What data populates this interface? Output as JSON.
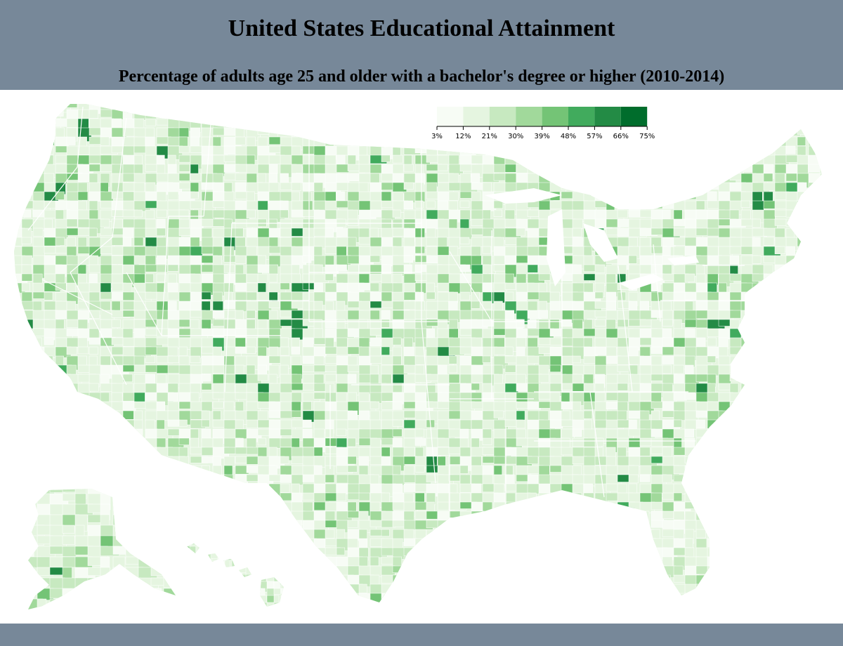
{
  "title": "United States Educational Attainment",
  "subtitle": "Percentage of adults age 25 and older with a bachelor's degree or higher (2010-2014)",
  "legend": {
    "ticks": [
      "3%",
      "12%",
      "21%",
      "30%",
      "39%",
      "48%",
      "57%",
      "66%",
      "75%"
    ],
    "colors": [
      "#f7fcf5",
      "#e5f5e0",
      "#c7e9c0",
      "#a1d99b",
      "#74c476",
      "#41ab5d",
      "#238b45",
      "#006d2c"
    ]
  },
  "map": {
    "regions": [
      "contiguous-us",
      "alaska",
      "hawaii"
    ],
    "fill_scale_description_hex": {
      "border": "#ffffff"
    }
  }
}
